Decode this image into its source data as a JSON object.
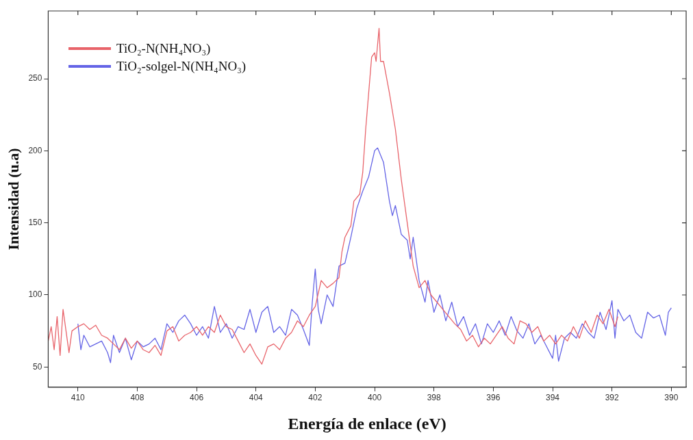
{
  "chart_data": {
    "type": "line",
    "xlabel": "Energía de enlace (eV)",
    "ylabel": "Intensidad (u.a)",
    "xlim": [
      411,
      389.5
    ],
    "xticks": [
      410,
      408,
      406,
      404,
      402,
      400,
      398,
      396,
      394,
      392,
      390
    ],
    "ylim": [
      36,
      297
    ],
    "yticks": [
      50,
      100,
      150,
      200,
      250
    ],
    "grid": false,
    "legend": "top left",
    "marker": "none",
    "line_style": "solid",
    "series": [
      {
        "name": "TiO₂-N(NH₄NO₃)",
        "color": "#e8636a",
        "x": [
          411.0,
          410.9,
          410.8,
          410.7,
          410.6,
          410.5,
          410.4,
          410.3,
          410.2,
          410.0,
          409.8,
          409.6,
          409.4,
          409.2,
          409.0,
          408.8,
          408.6,
          408.4,
          408.2,
          408.0,
          407.8,
          407.6,
          407.4,
          407.2,
          407.0,
          406.8,
          406.6,
          406.4,
          406.2,
          406.0,
          405.8,
          405.6,
          405.4,
          405.2,
          405.0,
          404.8,
          404.6,
          404.4,
          404.2,
          404.0,
          403.8,
          403.6,
          403.4,
          403.2,
          403.0,
          402.8,
          402.6,
          402.4,
          402.2,
          402.0,
          401.8,
          401.6,
          401.4,
          401.2,
          401.1,
          401.0,
          400.8,
          400.7,
          400.5,
          400.4,
          400.3,
          400.2,
          400.1,
          400.0,
          399.95,
          399.85,
          399.8,
          399.7,
          399.5,
          399.3,
          399.1,
          398.9,
          398.7,
          398.5,
          398.3,
          398.1,
          397.9,
          397.7,
          397.5,
          397.3,
          397.1,
          396.9,
          396.7,
          396.5,
          396.3,
          396.1,
          395.9,
          395.7,
          395.5,
          395.3,
          395.1,
          394.9,
          394.7,
          394.5,
          394.3,
          394.1,
          393.9,
          393.7,
          393.5,
          393.3,
          393.1,
          392.9,
          392.7,
          392.5,
          392.3,
          392.1,
          391.9,
          391.8
        ],
        "values": [
          68,
          78,
          62,
          85,
          58,
          90,
          75,
          60,
          75,
          78,
          80,
          76,
          79,
          72,
          70,
          66,
          62,
          70,
          63,
          68,
          62,
          60,
          65,
          58,
          75,
          78,
          68,
          72,
          74,
          78,
          72,
          78,
          74,
          86,
          78,
          76,
          68,
          60,
          66,
          58,
          52,
          64,
          66,
          62,
          70,
          74,
          82,
          78,
          86,
          92,
          110,
          105,
          108,
          112,
          130,
          140,
          148,
          165,
          170,
          185,
          215,
          240,
          265,
          268,
          262,
          285,
          262,
          262,
          240,
          215,
          180,
          150,
          120,
          105,
          110,
          100,
          95,
          90,
          85,
          80,
          76,
          68,
          72,
          64,
          70,
          66,
          72,
          78,
          70,
          66,
          82,
          80,
          74,
          78,
          68,
          72,
          66,
          72,
          68,
          78,
          70,
          82,
          74,
          86,
          80,
          90,
          78,
          85
        ]
      },
      {
        "name": "TiO₂-solgel-N(NH₄NO₃)",
        "color": "#6464e6",
        "x": [
          410.0,
          409.9,
          409.8,
          409.6,
          409.4,
          409.2,
          409.0,
          408.9,
          408.8,
          408.6,
          408.4,
          408.2,
          408.0,
          407.8,
          407.6,
          407.4,
          407.2,
          407.0,
          406.8,
          406.6,
          406.4,
          406.2,
          406.0,
          405.8,
          405.6,
          405.4,
          405.2,
          405.0,
          404.8,
          404.6,
          404.4,
          404.2,
          404.0,
          403.8,
          403.6,
          403.4,
          403.2,
          403.0,
          402.8,
          402.6,
          402.4,
          402.2,
          402.1,
          402.0,
          401.9,
          401.8,
          401.6,
          401.4,
          401.2,
          401.0,
          400.8,
          400.6,
          400.4,
          400.2,
          400.0,
          399.9,
          399.7,
          399.5,
          399.4,
          399.3,
          399.1,
          398.9,
          398.8,
          398.7,
          398.5,
          398.3,
          398.2,
          398.0,
          397.8,
          397.6,
          397.4,
          397.2,
          397.0,
          396.8,
          396.6,
          396.4,
          396.2,
          396.0,
          395.8,
          395.6,
          395.4,
          395.2,
          395.0,
          394.8,
          394.6,
          394.4,
          394.2,
          394.0,
          393.9,
          393.8,
          393.6,
          393.4,
          393.2,
          393.0,
          392.8,
          392.6,
          392.4,
          392.2,
          392.0,
          391.9,
          391.8,
          391.6,
          391.4,
          391.2,
          391.0,
          390.8,
          390.6,
          390.4,
          390.2,
          390.1,
          390.0
        ],
        "values": [
          80,
          62,
          72,
          64,
          66,
          68,
          60,
          53,
          72,
          60,
          70,
          55,
          68,
          64,
          66,
          70,
          62,
          80,
          74,
          82,
          86,
          80,
          72,
          78,
          70,
          92,
          74,
          80,
          70,
          78,
          76,
          90,
          74,
          88,
          92,
          74,
          78,
          72,
          90,
          86,
          76,
          65,
          95,
          118,
          90,
          80,
          100,
          92,
          120,
          122,
          140,
          160,
          172,
          182,
          200,
          202,
          192,
          165,
          155,
          162,
          142,
          138,
          125,
          140,
          110,
          95,
          110,
          88,
          100,
          82,
          95,
          78,
          85,
          72,
          80,
          66,
          80,
          74,
          82,
          72,
          85,
          75,
          70,
          80,
          66,
          72,
          64,
          56,
          72,
          54,
          70,
          74,
          70,
          80,
          74,
          70,
          88,
          76,
          96,
          70,
          90,
          82,
          86,
          74,
          70,
          88,
          84,
          86,
          72,
          88,
          91
        ]
      }
    ]
  }
}
